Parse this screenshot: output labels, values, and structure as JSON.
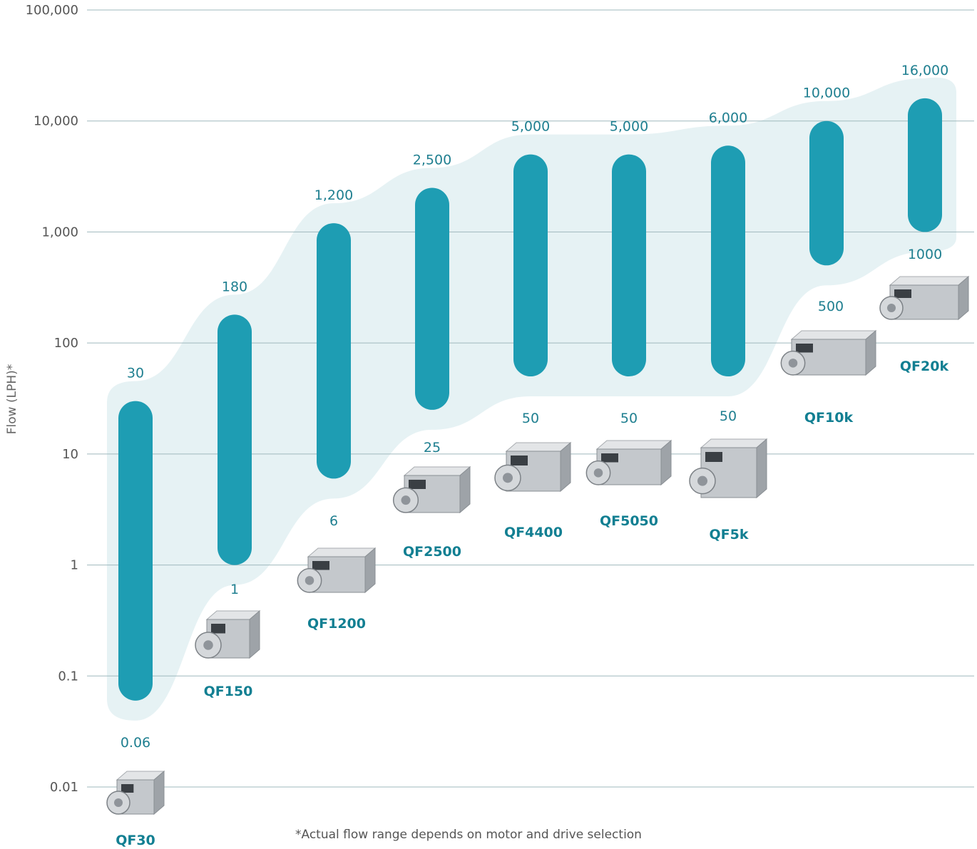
{
  "chart_data": {
    "type": "range-bar",
    "title": "",
    "xlabel": "",
    "ylabel": "Flow (LPH)*",
    "yscale": "log",
    "ylim": [
      0.01,
      100000
    ],
    "yticks": [
      0.01,
      0.1,
      1,
      10,
      100,
      1000,
      10000,
      100000
    ],
    "ytick_labels": [
      "0.01",
      "0.1",
      "1",
      "10",
      "100",
      "1,000",
      "10,000",
      "100,000"
    ],
    "grid": true,
    "series": [
      {
        "product": "QF30",
        "min": 0.06,
        "max": 30,
        "min_label": "0.06",
        "max_label": "30"
      },
      {
        "product": "QF150",
        "min": 1,
        "max": 180,
        "min_label": "1",
        "max_label": "180"
      },
      {
        "product": "QF1200",
        "min": 6,
        "max": 1200,
        "min_label": "6",
        "max_label": "1,200"
      },
      {
        "product": "QF2500",
        "min": 25,
        "max": 2500,
        "min_label": "25",
        "max_label": "2,500"
      },
      {
        "product": "QF4400",
        "min": 50,
        "max": 5000,
        "min_label": "50",
        "max_label": "5,000"
      },
      {
        "product": "QF5050",
        "min": 50,
        "max": 5000,
        "min_label": "50",
        "max_label": "5,000"
      },
      {
        "product": "QF5k",
        "min": 50,
        "max": 6000,
        "min_label": "50",
        "max_label": "6,000"
      },
      {
        "product": "QF10k",
        "min": 500,
        "max": 10000,
        "min_label": "500",
        "max_label": "10,000"
      },
      {
        "product": "QF20k",
        "min": 1000,
        "max": 16000,
        "min_label": "1000",
        "max_label": "16,000"
      }
    ],
    "footnote": "*Actual flow range depends on motor and drive selection",
    "colors": {
      "bar": "#1e9db3",
      "band": "#e6f2f4",
      "grid": "#9fb9bd",
      "label": "#1f7f90",
      "product_label": "#127f92"
    }
  }
}
